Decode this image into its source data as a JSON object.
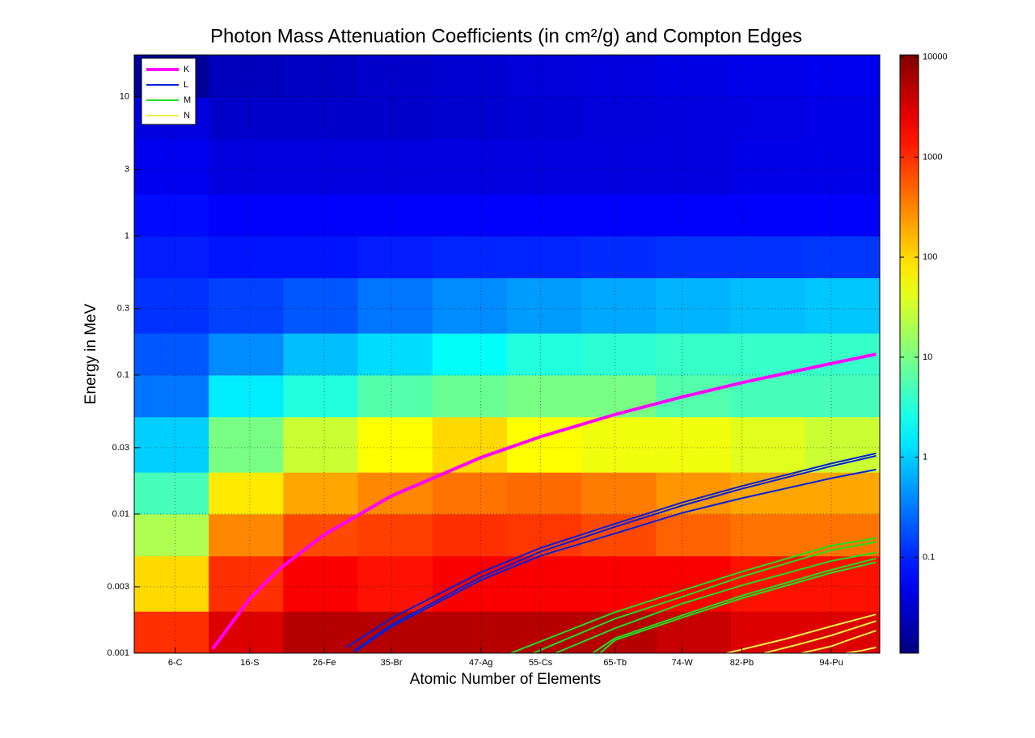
{
  "chart_data": {
    "type": "heatmap",
    "title": "Photon Mass Attenuation Coefficients (in cm²/g) and Compton Edges",
    "x_label": "Atomic Number of Elements",
    "y_label": "Energy in MeV",
    "xlim": [
      0.5,
      100.5
    ],
    "ylim": [
      0.001,
      20
    ],
    "y_scale": "log",
    "grid": true,
    "xticks": [
      {
        "value": 6,
        "label": "6-C"
      },
      {
        "value": 16,
        "label": "16-S"
      },
      {
        "value": 26,
        "label": "26-Fe"
      },
      {
        "value": 35,
        "label": "35-Br"
      },
      {
        "value": 47,
        "label": "47-Ag"
      },
      {
        "value": 55,
        "label": "55-Cs"
      },
      {
        "value": 65,
        "label": "65-Tb"
      },
      {
        "value": 74,
        "label": "74-W"
      },
      {
        "value": 82,
        "label": "82-Pb"
      },
      {
        "value": 94,
        "label": "94-Pu"
      }
    ],
    "yticks": [
      0.001,
      0.003,
      0.01,
      0.03,
      0.1,
      0.3,
      1,
      3,
      10
    ],
    "heatmap": {
      "colormap": "jet",
      "color_scale": "log",
      "clim": [
        0.011,
        10500
      ],
      "cticks": [
        0.1,
        1,
        10,
        100,
        1000,
        10000
      ],
      "x_edges": [
        0.5,
        10.5,
        20.5,
        30.5,
        40.5,
        50.5,
        60.5,
        70.5,
        80.5,
        90.5,
        100.5
      ],
      "y_edges": [
        0.001,
        0.002,
        0.005,
        0.01,
        0.02,
        0.05,
        0.1,
        0.2,
        0.5,
        1,
        2,
        5,
        10,
        20
      ],
      "values": [
        [
          1000,
          3000,
          5000,
          5000,
          5000,
          5000,
          5000,
          4000,
          3000,
          3000
        ],
        [
          100,
          1000,
          2000,
          1500,
          2000,
          2000,
          2000,
          2000,
          1500,
          1500
        ],
        [
          20,
          300,
          700,
          800,
          1000,
          900,
          700,
          500,
          400,
          400
        ],
        [
          5,
          80,
          200,
          300,
          400,
          450,
          350,
          250,
          200,
          200
        ],
        [
          1,
          10,
          30,
          60,
          100,
          60,
          50,
          50,
          40,
          30
        ],
        [
          0.3,
          1.5,
          3,
          6,
          8,
          10,
          10,
          6,
          5,
          5
        ],
        [
          0.2,
          0.4,
          0.8,
          1.2,
          2,
          3,
          3.5,
          4,
          4,
          4
        ],
        [
          0.12,
          0.15,
          0.2,
          0.3,
          0.4,
          0.5,
          0.6,
          0.7,
          0.8,
          0.9
        ],
        [
          0.09,
          0.08,
          0.08,
          0.09,
          0.1,
          0.1,
          0.11,
          0.12,
          0.12,
          0.13
        ],
        [
          0.07,
          0.06,
          0.06,
          0.06,
          0.06,
          0.06,
          0.06,
          0.06,
          0.06,
          0.06
        ],
        [
          0.05,
          0.04,
          0.04,
          0.04,
          0.04,
          0.04,
          0.04,
          0.04,
          0.045,
          0.045
        ],
        [
          0.04,
          0.03,
          0.03,
          0.03,
          0.032,
          0.035,
          0.037,
          0.04,
          0.042,
          0.044
        ],
        [
          0.015,
          0.025,
          0.027,
          0.03,
          0.033,
          0.037,
          0.04,
          0.043,
          0.046,
          0.05
        ]
      ]
    },
    "legend": "top-left",
    "series": [
      {
        "name": "K",
        "color": "#ff00ff",
        "width": 4,
        "lines": [
          {
            "x": [
              11,
              16,
              20,
              26,
              35,
              47,
              55,
              65,
              74,
              82,
              94,
              100
            ],
            "values": [
              0.00107,
              0.00247,
              0.00404,
              0.00711,
              0.0135,
              0.0255,
              0.036,
              0.052,
              0.0695,
              0.088,
              0.121,
              0.141
            ]
          }
        ]
      },
      {
        "name": "L",
        "color": "#0022dd",
        "width": 2,
        "lines": [
          {
            "x": [
              29,
              35,
              47,
              55,
              65,
              74,
              82,
              94,
              100
            ],
            "values": [
              0.0011,
              0.00178,
              0.00381,
              0.00571,
              0.00852,
              0.0121,
              0.0159,
              0.0231,
              0.0273
            ]
          },
          {
            "x": [
              30,
              35,
              47,
              55,
              65,
              74,
              82,
              94,
              100
            ],
            "values": [
              0.00104,
              0.0016,
              0.00352,
              0.00536,
              0.0081,
              0.0115,
              0.0152,
              0.0221,
              0.0262
            ]
          },
          {
            "x": [
              30,
              35,
              47,
              55,
              65,
              74,
              82,
              94,
              100
            ],
            "values": [
              0.00102,
              0.00155,
              0.00335,
              0.00501,
              0.00725,
              0.0102,
              0.013,
              0.0181,
              0.0209
            ]
          }
        ]
      },
      {
        "name": "M",
        "color": "#22dd22",
        "width": 2,
        "lines": [
          {
            "x": [
              51,
              65,
              74,
              82,
              94,
              100
            ],
            "values": [
              0.001,
              0.00197,
              0.00282,
              0.00385,
              0.00593,
              0.0067
            ]
          },
          {
            "x": [
              54,
              65,
              74,
              82,
              94,
              100
            ],
            "values": [
              0.001,
              0.00177,
              0.00254,
              0.00355,
              0.0055,
              0.0063
            ]
          },
          {
            "x": [
              57,
              65,
              74,
              82,
              94,
              100
            ],
            "values": [
              0.001,
              0.00151,
              0.00227,
              0.00307,
              0.0046,
              0.0053
            ]
          },
          {
            "x": [
              62,
              65,
              74,
              82,
              94,
              100
            ],
            "values": [
              0.001,
              0.00128,
              0.00187,
              0.00259,
              0.00397,
              0.0048
            ]
          },
          {
            "x": [
              63,
              65,
              74,
              82,
              94,
              100
            ],
            "values": [
              0.001,
              0.00124,
              0.0018,
              0.00248,
              0.00378,
              0.0045
            ]
          }
        ]
      },
      {
        "name": "N",
        "color": "#eeee44",
        "width": 2,
        "lines": [
          {
            "x": [
              80,
              88,
              94,
              100
            ],
            "values": [
              0.001,
              0.00127,
              0.00156,
              0.0019
            ]
          },
          {
            "x": [
              85,
              90,
              94,
              100
            ],
            "values": [
              0.001,
              0.00117,
              0.00134,
              0.0017
            ]
          },
          {
            "x": [
              90,
              94,
              97,
              100
            ],
            "values": [
              0.001,
              0.00112,
              0.00128,
              0.00145
            ]
          },
          {
            "x": [
              96,
              98,
              100
            ],
            "values": [
              0.001,
              0.00104,
              0.0011
            ]
          }
        ]
      }
    ]
  }
}
